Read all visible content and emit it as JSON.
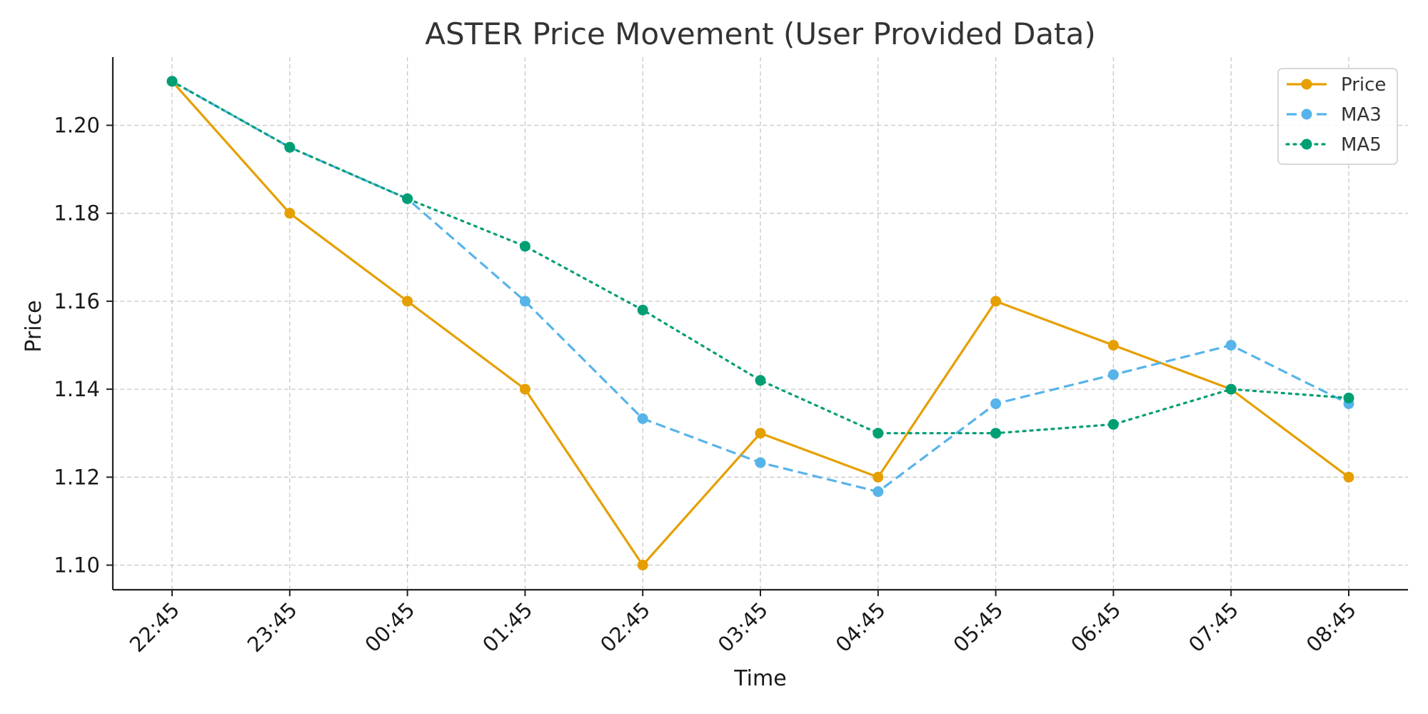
{
  "chart_data": {
    "type": "line",
    "title": "ASTER Price Movement (User Provided Data)",
    "xlabel": "Time",
    "ylabel": "Price",
    "categories": [
      "22:45",
      "23:45",
      "00:45",
      "01:45",
      "02:45",
      "03:45",
      "04:45",
      "05:45",
      "06:45",
      "07:45",
      "08:45"
    ],
    "ylim": [
      1.0944,
      1.2155
    ],
    "yticks": [
      1.1,
      1.12,
      1.14,
      1.16,
      1.18,
      1.2
    ],
    "grid": true,
    "legend_position": "top-right",
    "series": [
      {
        "name": "Price",
        "color": "#E69F00",
        "style": "solid",
        "marker": "circle",
        "values": [
          1.21,
          1.18,
          1.16,
          1.14,
          1.1,
          1.13,
          1.12,
          1.16,
          1.15,
          1.14,
          1.12
        ]
      },
      {
        "name": "MA3",
        "color": "#56B4E9",
        "style": "dashed",
        "marker": "circle",
        "values": [
          1.21,
          1.195,
          1.1833,
          1.16,
          1.1333,
          1.1233,
          1.1167,
          1.1367,
          1.1433,
          1.15,
          1.1367
        ]
      },
      {
        "name": "MA5",
        "color": "#009E73",
        "style": "dotted",
        "marker": "circle",
        "values": [
          1.21,
          1.195,
          1.1833,
          1.1725,
          1.158,
          1.142,
          1.13,
          1.13,
          1.132,
          1.14,
          1.138
        ]
      }
    ]
  }
}
